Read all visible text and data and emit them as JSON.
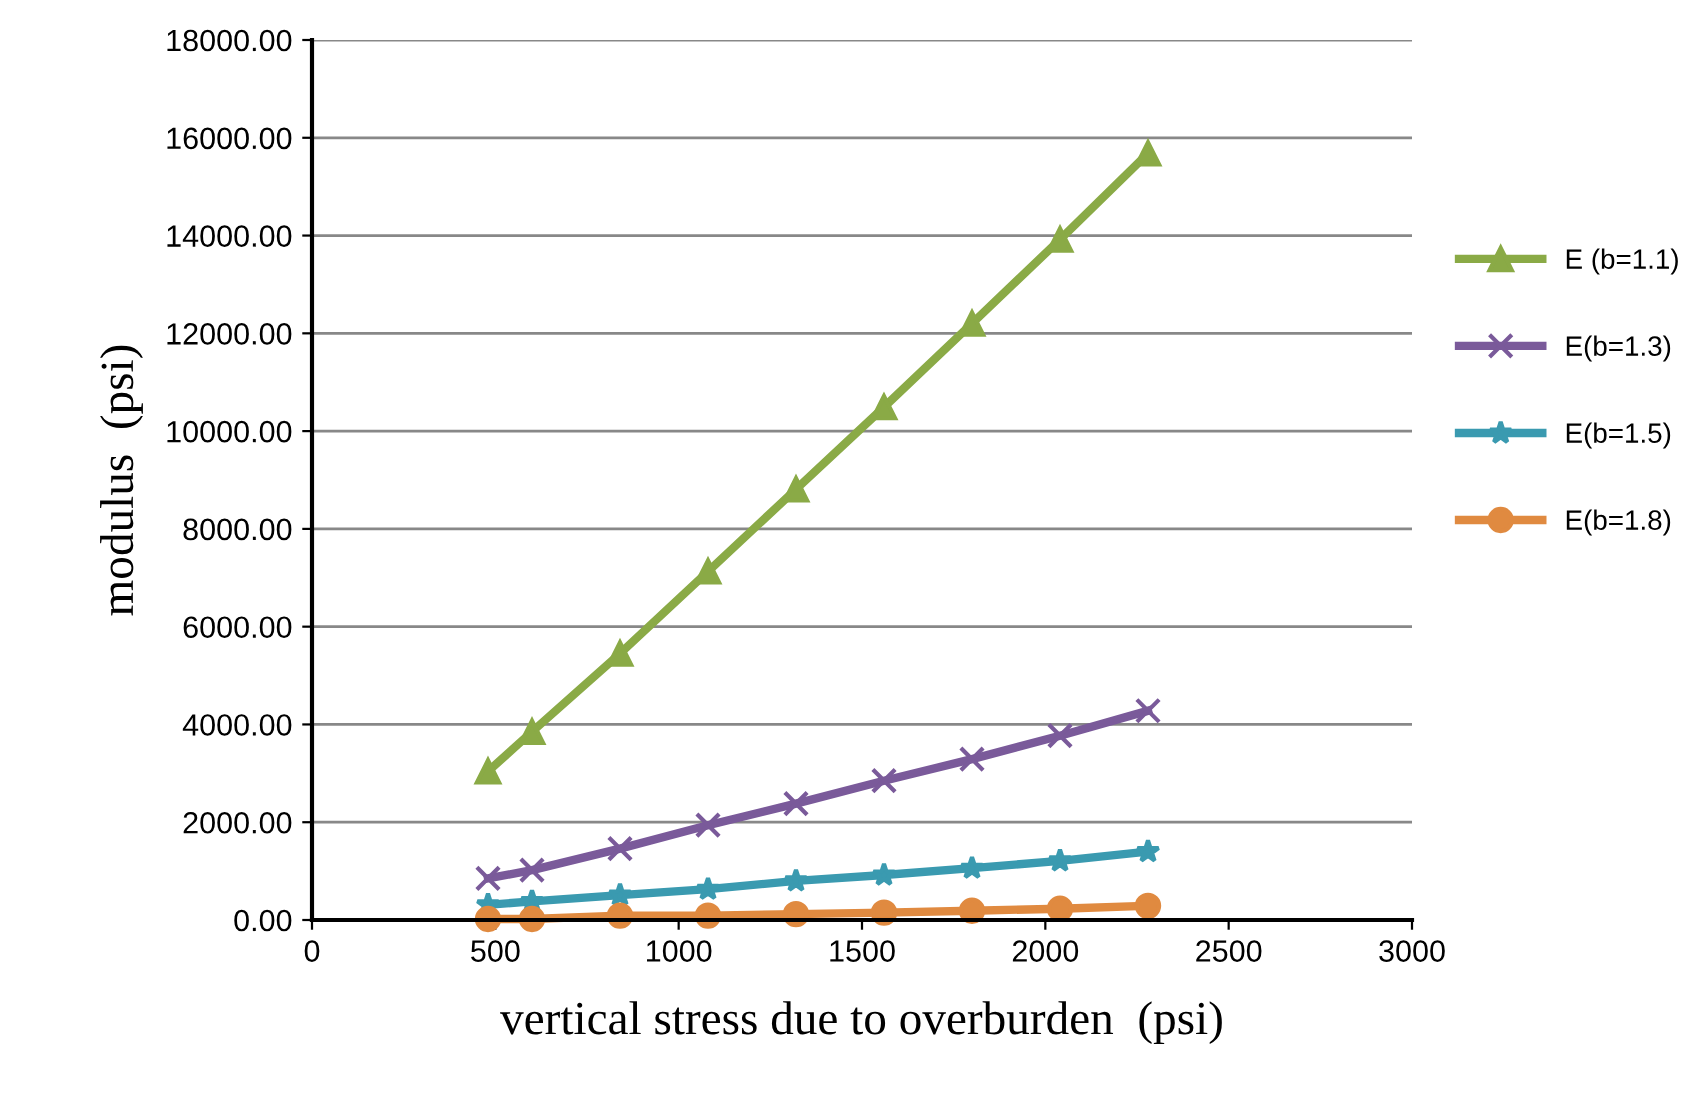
{
  "chart_data": {
    "type": "line",
    "xlabel": "vertical stress due to overburden  (psi)",
    "ylabel": "modulus  (psi)",
    "x": [
      480,
      600,
      840,
      1080,
      1320,
      1560,
      1800,
      2040,
      2280
    ],
    "series": [
      {
        "name": "E (b=1.1)",
        "color": "#8aaa46",
        "marker": "triangle",
        "values": [
          3040,
          3850,
          5450,
          7130,
          8810,
          10490,
          12200,
          13920,
          15680
        ]
      },
      {
        "name": "E(b=1.3)",
        "color": "#7a5a9a",
        "marker": "cross",
        "values": [
          850,
          1020,
          1460,
          1940,
          2380,
          2850,
          3290,
          3770,
          4280
        ]
      },
      {
        "name": "E(b=1.5)",
        "color": "#3a9ab0",
        "marker": "star",
        "values": [
          310,
          380,
          510,
          630,
          800,
          920,
          1060,
          1210,
          1400
        ]
      },
      {
        "name": "E(b=1.8)",
        "color": "#e08a40",
        "marker": "circle",
        "values": [
          20,
          20,
          90,
          90,
          120,
          150,
          190,
          230,
          290
        ]
      }
    ],
    "xlim": [
      0,
      3000
    ],
    "xticks": [
      0,
      500,
      1000,
      1500,
      2000,
      2500,
      3000
    ],
    "ylim": [
      0,
      18000
    ],
    "yticks": [
      {
        "value": 0,
        "label": "0.00"
      },
      {
        "value": 2000,
        "label": "2000.00"
      },
      {
        "value": 4000,
        "label": "4000.00"
      },
      {
        "value": 6000,
        "label": "6000.00"
      },
      {
        "value": 8000,
        "label": "8000.00"
      },
      {
        "value": 10000,
        "label": "10000.00"
      },
      {
        "value": 12000,
        "label": "12000.00"
      },
      {
        "value": 14000,
        "label": "14000.00"
      },
      {
        "value": 16000,
        "label": "16000.00"
      },
      {
        "value": 18000,
        "label": "18000.00"
      }
    ],
    "grid": "y",
    "legend": "right",
    "line_style": "solid"
  }
}
